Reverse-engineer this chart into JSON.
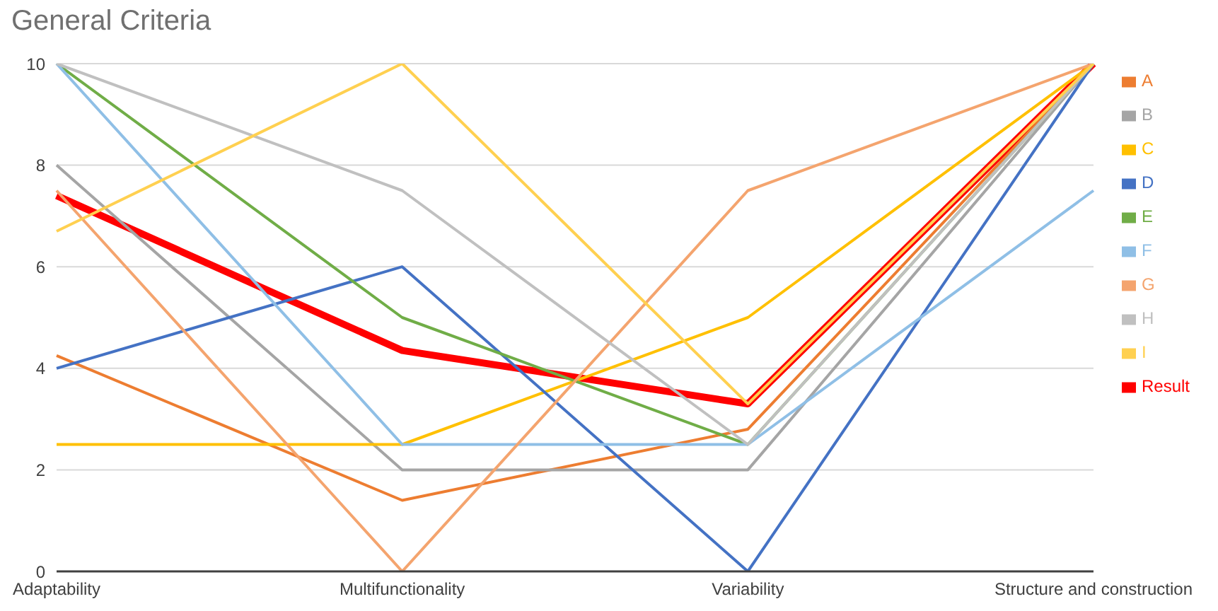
{
  "chart_data": {
    "type": "line",
    "title": "General Criteria",
    "categories": [
      "Adaptability",
      "Multifunctionality",
      "Variability",
      "Structure and construction"
    ],
    "series": [
      {
        "name": "Result",
        "color": "#ff0000",
        "values": [
          7.4,
          4.35,
          3.3,
          10
        ]
      },
      {
        "name": "A",
        "color": "#ed7d31",
        "values": [
          4.25,
          1.4,
          2.8,
          10
        ]
      },
      {
        "name": "B",
        "color": "#a5a5a5",
        "values": [
          8,
          2,
          2,
          10
        ]
      },
      {
        "name": "C",
        "color": "#ffc000",
        "values": [
          2.5,
          2.5,
          5,
          10
        ]
      },
      {
        "name": "D",
        "color": "#4472c4",
        "values": [
          4,
          6,
          0,
          10
        ]
      },
      {
        "name": "E",
        "color": "#70ad47",
        "values": [
          10,
          5,
          2.5,
          10
        ]
      },
      {
        "name": "F",
        "color": "#8fbfe6",
        "values": [
          10,
          2.5,
          2.5,
          7.5
        ]
      },
      {
        "name": "G",
        "color": "#f4a46e",
        "values": [
          7.5,
          0,
          7.5,
          10
        ]
      },
      {
        "name": "H",
        "color": "#c0c0c0",
        "values": [
          10,
          7.5,
          2.5,
          10
        ]
      },
      {
        "name": "I",
        "color": "#ffd050",
        "values": [
          6.7,
          10,
          3.3,
          10
        ]
      }
    ],
    "ylim": [
      0,
      10
    ],
    "yticks": [
      0,
      2,
      4,
      6,
      8,
      10
    ],
    "grid": "y",
    "legend": "right",
    "marker": "none",
    "line_style": "solid"
  }
}
